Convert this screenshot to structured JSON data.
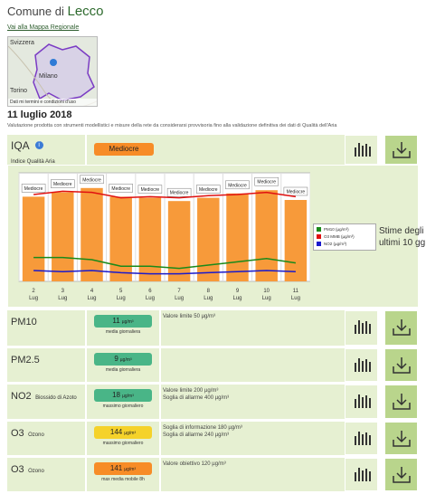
{
  "header": {
    "prefix": "Comune di",
    "city": "Lecco",
    "map_link": "Vai alla Mappa Regionale"
  },
  "map": {
    "labels": [
      "Svizzera",
      "Milano",
      "Torino"
    ],
    "attribution": "Dati mi termini e condizioni d'uso"
  },
  "date": "11 luglio 2018",
  "note": "Valutazione prodotta con strumenti modellistici e misure della rete da considerarsi provvisoria fino alla validazione definitiva dei dati di Qualità dell'Aria",
  "iqa": {
    "name": "IQA",
    "subtitle": "Indice Qualità Aria",
    "value": "Mediocre",
    "color": "#f78c27"
  },
  "chart_data": {
    "type": "bar",
    "categories": [
      "2 Lug",
      "3 Lug",
      "4 Lug",
      "5 Lug",
      "6 Lug",
      "7 Lug",
      "8 Lug",
      "9 Lug",
      "10 Lug",
      "11 Lug"
    ],
    "bar_labels": [
      "Mediocre",
      "Mediocre",
      "Mediocre",
      "Mediocre",
      "Mediocre",
      "Mediocre",
      "Mediocre",
      "Mediocre",
      "Mediocre",
      "Mediocre"
    ],
    "bar_values": [
      0.78,
      0.82,
      0.86,
      0.78,
      0.77,
      0.74,
      0.77,
      0.81,
      0.84,
      0.75
    ],
    "bar_color": "#f79a3a",
    "series": [
      {
        "name": "PM10 (µg/m³)",
        "color": "#1a8a1a",
        "values": [
          0.22,
          0.22,
          0.2,
          0.14,
          0.14,
          0.12,
          0.15,
          0.18,
          0.21,
          0.17
        ]
      },
      {
        "name": "O3 MMB (µg/m³)",
        "color": "#e01010",
        "values": [
          0.8,
          0.83,
          0.82,
          0.77,
          0.78,
          0.77,
          0.79,
          0.8,
          0.82,
          0.78
        ]
      },
      {
        "name": "NO2 (µg/m³)",
        "color": "#1a1acc",
        "values": [
          0.1,
          0.09,
          0.1,
          0.08,
          0.07,
          0.07,
          0.08,
          0.09,
          0.1,
          0.09
        ]
      }
    ],
    "side_text": "Stime degli ultimi 10 gg."
  },
  "pollutants": [
    {
      "name": "PM10",
      "sub": "",
      "value": "11",
      "unit": "µg/m³",
      "stat": "media giornaliera",
      "color": "#49b587",
      "limits": [
        "Valore limite 50 µg/m³"
      ]
    },
    {
      "name": "PM2.5",
      "sub": "",
      "value": "9",
      "unit": "µg/m³",
      "stat": "media giornaliera",
      "color": "#49b587",
      "limits": []
    },
    {
      "name": "NO2",
      "sub": "Biossido di Azoto",
      "value": "18",
      "unit": "µg/m³",
      "stat": "massimo giornaliero",
      "color": "#49b587",
      "limits": [
        "Valore limite 200 µg/m³",
        "Soglia di allarme 400 µg/m³"
      ]
    },
    {
      "name": "O3",
      "sub": "Ozono",
      "value": "144",
      "unit": "µg/m³",
      "stat": "massimo giornaliero",
      "color": "#f5d22a",
      "limits": [
        "Soglia di informazione 180 µg/m³",
        "Soglia di allarme 240 µg/m³"
      ]
    },
    {
      "name": "O3",
      "sub": "Ozono",
      "value": "141",
      "unit": "µg/m³",
      "stat": "max media mobile 8h",
      "color": "#f78c27",
      "limits": [
        "Valore obiettivo 120 µg/m³"
      ]
    }
  ]
}
